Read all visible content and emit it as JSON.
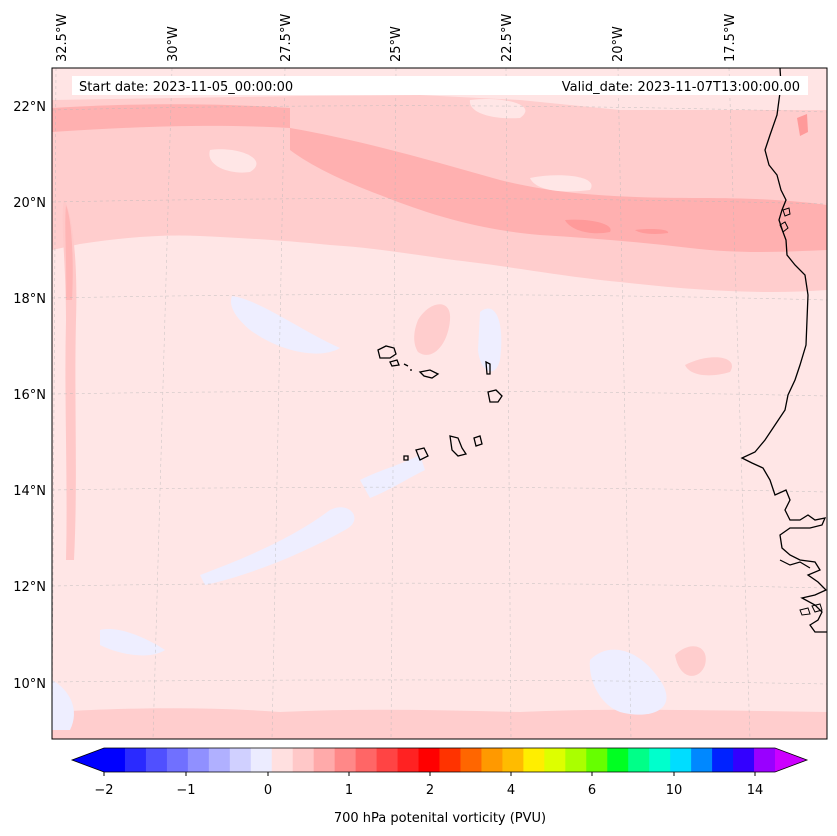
{
  "map": {
    "title_left": "Start date: 2023-11-05_00:00:00",
    "title_right": "Valid_date: 2023-11-07T13:00:00.00",
    "lon_labels": [
      "32.5°W",
      "30°W",
      "27.5°W",
      "25°W",
      "22.5°W",
      "20°W",
      "17.5°W"
    ],
    "lat_labels": [
      "22°N",
      "20°N",
      "18°N",
      "16°N",
      "14°N",
      "12°N",
      "10°N"
    ],
    "region": {
      "lon_min": -33.0,
      "lon_max": -15.5,
      "lat_min": 8.8,
      "lat_max": 22.8
    }
  },
  "colorbar": {
    "label": "700 hPa potenital vorticity (PVU)",
    "tick_labels": [
      "−2",
      "−1",
      "0",
      "1",
      "2",
      "4",
      "6",
      "10",
      "14"
    ],
    "colors": [
      "#0000ff",
      "#2a2aff",
      "#5050ff",
      "#7070ff",
      "#9090ff",
      "#b0b0ff",
      "#d0d0ff",
      "#ececff",
      "#ffe0e0",
      "#ffc8c8",
      "#ffaaaa",
      "#ff8888",
      "#ff6666",
      "#ff4444",
      "#ff2222",
      "#ff0000",
      "#ff3300",
      "#ff6600",
      "#ff9900",
      "#ffbb00",
      "#ffee00",
      "#ddff00",
      "#aaff00",
      "#66ff00",
      "#00ff22",
      "#00ff88",
      "#00ffcc",
      "#00ddff",
      "#0088ff",
      "#0022ff",
      "#3300ff",
      "#9900ff"
    ],
    "extend_low_color": "#0000ff",
    "extend_high_color": "#cc00ff"
  }
}
